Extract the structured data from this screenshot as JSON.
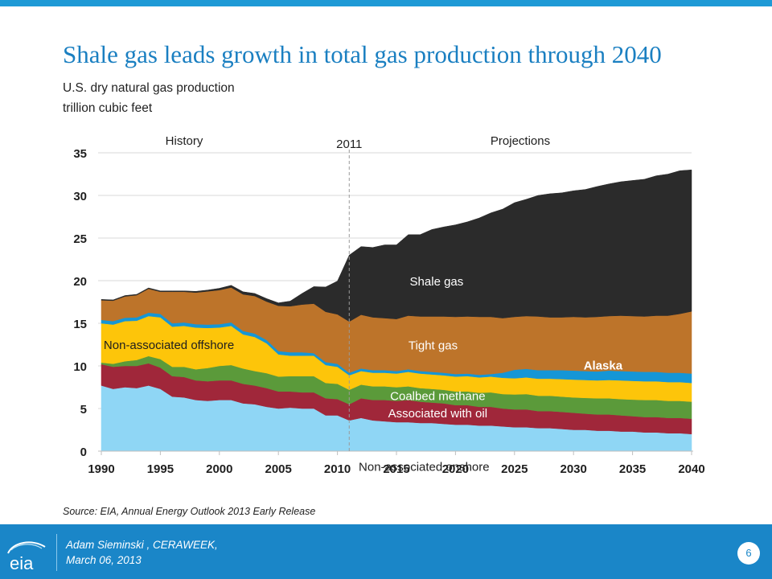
{
  "slide": {
    "title": "Shale gas leads growth in total gas production through 2040",
    "subtitle_line1": "U.S. dry natural gas production",
    "subtitle_line2": "trillion cubic feet",
    "source": "Source:  EIA, Annual Energy Outlook 2013 Early Release",
    "footer_line1": "Adam Sieminski , CERAWEEK,",
    "footer_line2": "March 06, 2013",
    "page_number": "6",
    "logo_text": "eia",
    "accent_color": "#1f9ad6"
  },
  "chart_data": {
    "type": "area",
    "stacked": true,
    "xlim": [
      1990,
      2040
    ],
    "ylim": [
      0,
      35
    ],
    "xticks": [
      "1990",
      "1995",
      "2000",
      "2005",
      "2010",
      "2015",
      "2020",
      "2025",
      "2030",
      "2035",
      "2040"
    ],
    "yticks": [
      "0",
      "5",
      "10",
      "15",
      "20",
      "25",
      "30",
      "35"
    ],
    "grid": "horizontal",
    "annotations": {
      "history": "History",
      "projections": "Projections",
      "divider_year_label": "2011",
      "divider_year": 2011
    },
    "x": [
      1990,
      1991,
      1992,
      1993,
      1994,
      1995,
      1996,
      1997,
      1998,
      1999,
      2000,
      2001,
      2002,
      2003,
      2004,
      2005,
      2006,
      2007,
      2008,
      2009,
      2010,
      2011,
      2012,
      2013,
      2014,
      2015,
      2016,
      2017,
      2018,
      2019,
      2020,
      2021,
      2022,
      2023,
      2024,
      2025,
      2026,
      2027,
      2028,
      2029,
      2030,
      2031,
      2032,
      2033,
      2034,
      2035,
      2036,
      2037,
      2038,
      2039,
      2040
    ],
    "series": [
      {
        "name": "Non-associated onshore",
        "color": "#8fd6f5",
        "label_color": "#1e1e1e",
        "values": [
          7.7,
          7.3,
          7.5,
          7.4,
          7.7,
          7.3,
          6.4,
          6.3,
          6.0,
          5.9,
          6.0,
          6.0,
          5.6,
          5.5,
          5.2,
          5.0,
          5.1,
          5.0,
          5.0,
          4.2,
          4.2,
          3.6,
          3.9,
          3.6,
          3.5,
          3.4,
          3.4,
          3.3,
          3.3,
          3.2,
          3.1,
          3.1,
          3.0,
          3.0,
          2.9,
          2.8,
          2.8,
          2.7,
          2.7,
          2.6,
          2.5,
          2.5,
          2.4,
          2.4,
          2.3,
          2.3,
          2.2,
          2.2,
          2.1,
          2.1,
          2.0
        ]
      },
      {
        "name": "Associated with oil",
        "color": "#a0273a",
        "label_color": "#ffffff",
        "values": [
          2.5,
          2.6,
          2.5,
          2.6,
          2.6,
          2.5,
          2.4,
          2.4,
          2.3,
          2.3,
          2.3,
          2.3,
          2.3,
          2.2,
          2.2,
          2.0,
          1.9,
          1.9,
          1.9,
          2.0,
          1.9,
          1.9,
          2.3,
          2.4,
          2.5,
          2.5,
          2.6,
          2.5,
          2.4,
          2.4,
          2.3,
          2.3,
          2.2,
          2.2,
          2.1,
          2.1,
          2.1,
          2.0,
          2.0,
          2.0,
          2.0,
          1.9,
          1.9,
          1.9,
          1.9,
          1.8,
          1.8,
          1.8,
          1.8,
          1.8,
          1.8
        ]
      },
      {
        "name": "Coalbed methane",
        "color": "#5b9a3a",
        "label_color": "#ffffff",
        "values": [
          0.2,
          0.35,
          0.55,
          0.7,
          0.85,
          1.0,
          1.1,
          1.2,
          1.3,
          1.55,
          1.7,
          1.8,
          1.8,
          1.7,
          1.75,
          1.75,
          1.8,
          1.9,
          1.9,
          1.8,
          1.8,
          1.7,
          1.6,
          1.6,
          1.6,
          1.6,
          1.6,
          1.6,
          1.6,
          1.6,
          1.6,
          1.6,
          1.65,
          1.7,
          1.7,
          1.75,
          1.8,
          1.8,
          1.8,
          1.8,
          1.8,
          1.85,
          1.9,
          1.9,
          1.9,
          1.95,
          2.0,
          2.0,
          2.0,
          2.0,
          2.0
        ]
      },
      {
        "name": "Non-associated offshore",
        "color": "#fdc50a",
        "label_color": "#1e1e1e",
        "values": [
          4.6,
          4.6,
          4.7,
          4.6,
          4.7,
          4.9,
          4.7,
          4.8,
          4.9,
          4.7,
          4.5,
          4.6,
          4.0,
          4.0,
          3.5,
          2.6,
          2.4,
          2.4,
          2.4,
          2.1,
          2.0,
          1.7,
          1.6,
          1.6,
          1.6,
          1.6,
          1.7,
          1.7,
          1.7,
          1.7,
          1.75,
          1.8,
          1.8,
          1.85,
          1.9,
          1.9,
          1.95,
          2.0,
          2.0,
          2.05,
          2.1,
          2.1,
          2.1,
          2.15,
          2.2,
          2.2,
          2.2,
          2.2,
          2.2,
          2.2,
          2.2
        ]
      },
      {
        "name": "Alaska",
        "color": "#1596d6",
        "label_color": "#ffffff",
        "values": [
          0.4,
          0.4,
          0.4,
          0.4,
          0.4,
          0.4,
          0.4,
          0.4,
          0.4,
          0.4,
          0.4,
          0.4,
          0.4,
          0.4,
          0.4,
          0.4,
          0.4,
          0.4,
          0.3,
          0.35,
          0.35,
          0.3,
          0.3,
          0.3,
          0.3,
          0.3,
          0.3,
          0.3,
          0.3,
          0.3,
          0.3,
          0.3,
          0.3,
          0.3,
          0.6,
          1.0,
          1.0,
          1.0,
          1.0,
          1.05,
          1.05,
          1.05,
          1.05,
          1.1,
          1.1,
          1.1,
          1.1,
          1.1,
          1.1,
          1.1,
          1.1
        ]
      },
      {
        "name": "Tight gas",
        "color": "#bd742a",
        "label_color": "#ffffff",
        "values": [
          2.3,
          2.4,
          2.5,
          2.6,
          2.8,
          2.6,
          3.7,
          3.6,
          3.7,
          3.9,
          4.0,
          4.1,
          4.3,
          4.4,
          4.5,
          5.3,
          5.4,
          5.6,
          5.8,
          5.9,
          5.8,
          6.0,
          6.3,
          6.2,
          6.1,
          6.1,
          6.3,
          6.4,
          6.5,
          6.6,
          6.7,
          6.7,
          6.8,
          6.7,
          6.4,
          6.2,
          6.2,
          6.3,
          6.2,
          6.2,
          6.3,
          6.3,
          6.4,
          6.4,
          6.5,
          6.5,
          6.5,
          6.6,
          6.7,
          6.9,
          7.3
        ]
      },
      {
        "name": "Shale gas",
        "color": "#2b2b2b",
        "label_color": "#ffffff",
        "values": [
          0.1,
          0.1,
          0.1,
          0.1,
          0.1,
          0.1,
          0.1,
          0.1,
          0.15,
          0.15,
          0.2,
          0.25,
          0.3,
          0.3,
          0.35,
          0.35,
          0.6,
          1.3,
          2.0,
          2.9,
          3.9,
          7.8,
          8.0,
          8.2,
          8.6,
          8.7,
          9.5,
          9.6,
          10.2,
          10.5,
          10.8,
          11.1,
          11.6,
          12.2,
          12.8,
          13.4,
          13.7,
          14.2,
          14.5,
          14.6,
          14.8,
          15.0,
          15.3,
          15.5,
          15.7,
          15.9,
          16.1,
          16.4,
          16.6,
          16.8,
          16.6
        ]
      }
    ]
  }
}
